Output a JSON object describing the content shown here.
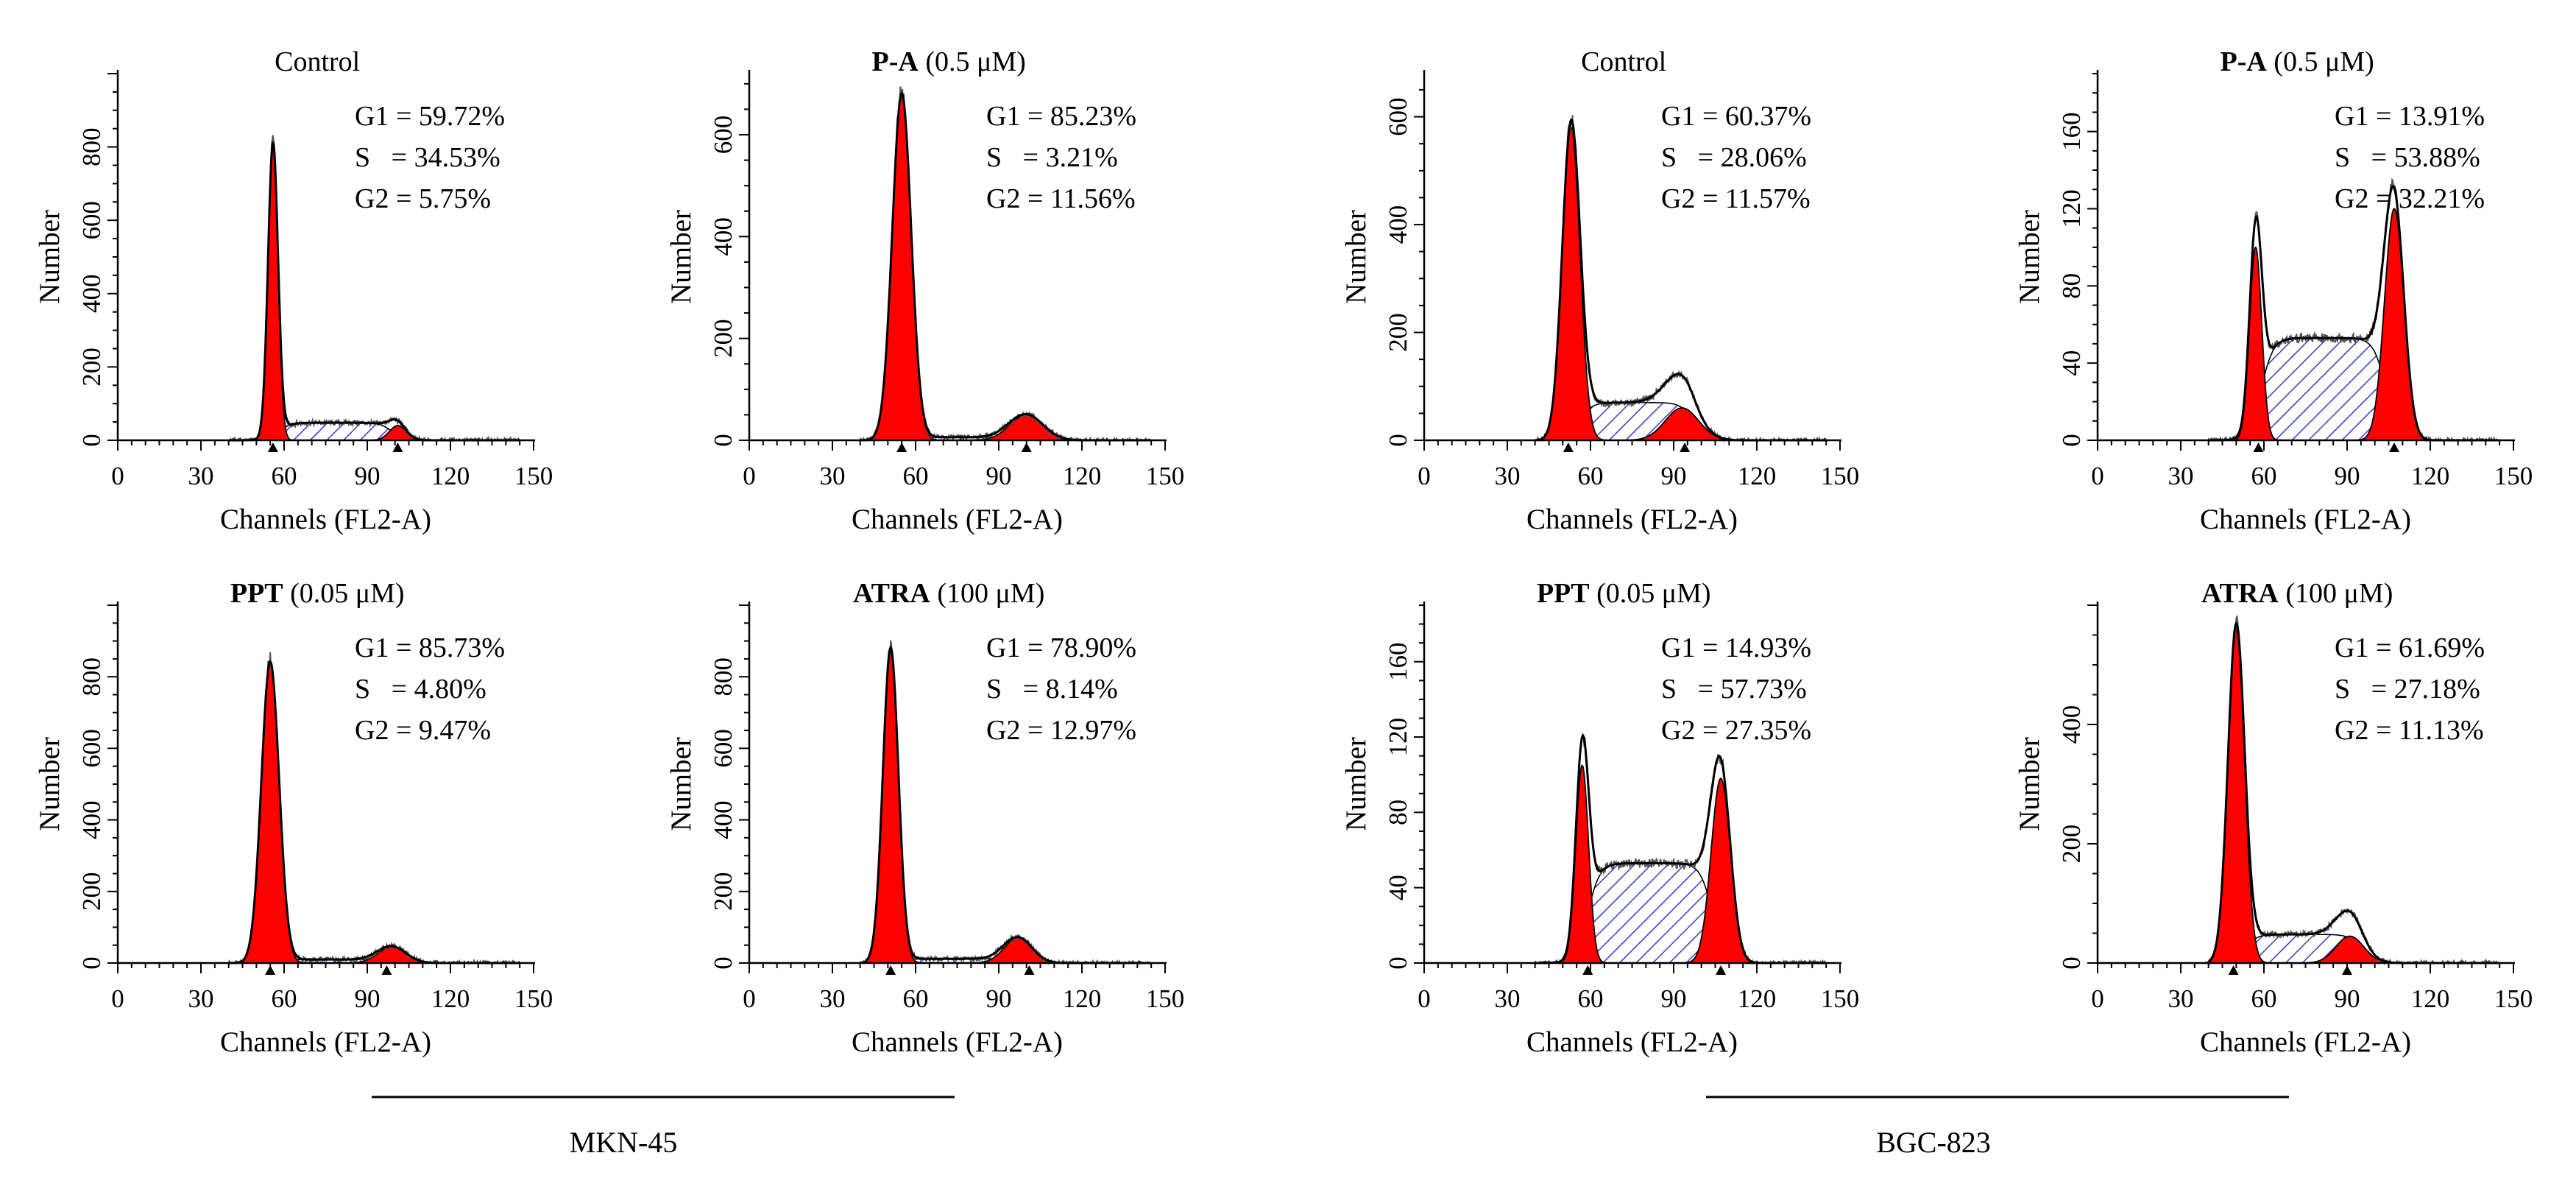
{
  "colors": {
    "g1_fill": "#ff0000",
    "g2_fill": "#ff0000",
    "s_hatch": "#3a3acc",
    "fit_line": "#000000",
    "raw_line": "#555555"
  },
  "groups": [
    {
      "label": "MKN-45",
      "panels": [
        0,
        1,
        4,
        5
      ]
    },
    {
      "label": "BGC-823",
      "panels": [
        2,
        3,
        6,
        7
      ]
    }
  ],
  "chart_data": [
    {
      "type": "histogram",
      "cell_line": "MKN-45",
      "title_bold": "",
      "title_normal": "Control",
      "xlabel": "Channels (FL2-A)",
      "ylabel": "Number",
      "xlim": [
        0,
        150
      ],
      "xticks": [
        "0",
        "30",
        "60",
        "90",
        "120",
        "150"
      ],
      "ylim": [
        0,
        1000
      ],
      "yticks": [
        "0",
        "200",
        "400",
        "600",
        "800"
      ],
      "stats": [
        "G1 = 59.72%",
        "S   = 34.53%",
        "G2 = 5.75%"
      ],
      "g1": {
        "peak": 800,
        "center": 56,
        "sigma": 1.8
      },
      "g2": {
        "peak": 40,
        "center": 101,
        "sigma": 3
      },
      "s_phase": {
        "start": 58,
        "end": 99,
        "height": 48
      },
      "g1_marker": 56,
      "g2_marker": 101
    },
    {
      "type": "histogram",
      "cell_line": "MKN-45",
      "title_bold": "P-A",
      "title_normal": " (0.5 μM)",
      "xlabel": "Channels (FL2-A)",
      "ylabel": "Number",
      "xlim": [
        0,
        150
      ],
      "xticks": [
        "0",
        "30",
        "60",
        "90",
        "120",
        "150"
      ],
      "ylim": [
        0,
        720
      ],
      "yticks": [
        "0",
        "200",
        "400",
        "600"
      ],
      "stats": [
        "G1 = 85.23%",
        "S   = 3.21%",
        "G2 = 11.56%"
      ],
      "g1": {
        "peak": 680,
        "center": 55,
        "sigma": 3.4
      },
      "g2": {
        "peak": 50,
        "center": 100,
        "sigma": 6
      },
      "s_phase": {
        "start": 58,
        "end": 97,
        "height": 6
      },
      "g1_marker": 55,
      "g2_marker": 100
    },
    {
      "type": "histogram",
      "cell_line": "BGC-823",
      "title_bold": "",
      "title_normal": "Control",
      "xlabel": "Channels (FL2-A)",
      "ylabel": "Number",
      "xlim": [
        0,
        150
      ],
      "xticks": [
        "0",
        "30",
        "60",
        "90",
        "120",
        "150"
      ],
      "ylim": [
        0,
        680
      ],
      "yticks": [
        "0",
        "200",
        "400",
        "600"
      ],
      "stats": [
        "G1 = 60.37%",
        "S   = 28.06%",
        "G2 = 11.57%"
      ],
      "g1": {
        "peak": 580,
        "center": 53,
        "sigma": 3.2
      },
      "g2": {
        "peak": 60,
        "center": 93,
        "sigma": 6
      },
      "s_phase": {
        "start": 56,
        "end": 97,
        "height": 70
      },
      "g1_marker": 52,
      "g2_marker": 94
    },
    {
      "type": "histogram",
      "cell_line": "BGC-823",
      "title_bold": "P-A",
      "title_normal": " (0.5 μM)",
      "xlabel": "Channels (FL2-A)",
      "ylabel": "Number",
      "xlim": [
        0,
        150
      ],
      "xticks": [
        "0",
        "30",
        "60",
        "90",
        "120",
        "150"
      ],
      "ylim": [
        0,
        190
      ],
      "yticks": [
        "0",
        "40",
        "80",
        "120",
        "160"
      ],
      "stats": [
        "G1 = 13.91%",
        "S   = 53.88%",
        "G2 = 32.21%"
      ],
      "g1": {
        "peak": 100,
        "center": 57,
        "sigma": 2.2
      },
      "g2": {
        "peak": 120,
        "center": 107,
        "sigma": 3.5
      },
      "s_phase": {
        "start": 59,
        "end": 104,
        "height": 53
      },
      "g1_marker": 58,
      "g2_marker": 107
    },
    {
      "type": "histogram",
      "cell_line": "MKN-45",
      "title_bold": "PPT",
      "title_normal": " (0.05 μM)",
      "xlabel": "Channels (FL2-A)",
      "ylabel": "Number",
      "xlim": [
        0,
        150
      ],
      "xticks": [
        "0",
        "30",
        "60",
        "90",
        "120",
        "150"
      ],
      "ylim": [
        0,
        1000
      ],
      "yticks": [
        "0",
        "200",
        "400",
        "600",
        "800"
      ],
      "stats": [
        "G1 = 85.73%",
        "S   = 4.80%",
        "G2 = 9.47%"
      ],
      "g1": {
        "peak": 840,
        "center": 55,
        "sigma": 3.2
      },
      "g2": {
        "peak": 45,
        "center": 99,
        "sigma": 5
      },
      "s_phase": {
        "start": 58,
        "end": 96,
        "height": 10
      },
      "g1_marker": 55,
      "g2_marker": 97
    },
    {
      "type": "histogram",
      "cell_line": "MKN-45",
      "title_bold": "ATRA",
      "title_normal": " (100 μM)",
      "xlabel": "Channels (FL2-A)",
      "ylabel": "Number",
      "xlim": [
        0,
        150
      ],
      "xticks": [
        "0",
        "30",
        "60",
        "90",
        "120",
        "150"
      ],
      "ylim": [
        0,
        1000
      ],
      "yticks": [
        "0",
        "200",
        "400",
        "600",
        "800"
      ],
      "stats": [
        "G1 = 78.90%",
        "S   = 8.14%",
        "G2 = 12.97%"
      ],
      "g1": {
        "peak": 880,
        "center": 51,
        "sigma": 2.8
      },
      "g2": {
        "peak": 70,
        "center": 97,
        "sigma": 5
      },
      "s_phase": {
        "start": 55,
        "end": 94,
        "height": 12
      },
      "g1_marker": 51,
      "g2_marker": 101
    },
    {
      "type": "histogram",
      "cell_line": "BGC-823",
      "title_bold": "PPT",
      "title_normal": " (0.05 μM)",
      "xlabel": "Channels (FL2-A)",
      "ylabel": "Number",
      "xlim": [
        0,
        150
      ],
      "xticks": [
        "0",
        "30",
        "60",
        "90",
        "120",
        "150"
      ],
      "ylim": [
        0,
        190
      ],
      "yticks": [
        "0",
        "40",
        "80",
        "120",
        "160"
      ],
      "stats": [
        "G1 = 14.93%",
        "S   = 57.73%",
        "G2 = 27.35%"
      ],
      "g1": {
        "peak": 105,
        "center": 57,
        "sigma": 2.3
      },
      "g2": {
        "peak": 98,
        "center": 107,
        "sigma": 3.5
      },
      "s_phase": {
        "start": 59,
        "end": 104,
        "height": 53
      },
      "g1_marker": 59,
      "g2_marker": 107
    },
    {
      "type": "histogram",
      "cell_line": "BGC-823",
      "title_bold": "ATRA",
      "title_normal": " (100 μM)",
      "xlabel": "Channels (FL2-A)",
      "ylabel": "Number",
      "xlim": [
        0,
        150
      ],
      "xticks": [
        "0",
        "30",
        "60",
        "90",
        "120",
        "150"
      ],
      "ylim": [
        0,
        600
      ],
      "yticks": [
        "0",
        "200",
        "400"
      ],
      "stats": [
        "G1 = 61.69%",
        "S   = 27.18%",
        "G2 = 11.13%"
      ],
      "g1": {
        "peak": 560,
        "center": 50,
        "sigma": 3.0
      },
      "g2": {
        "peak": 45,
        "center": 91,
        "sigma": 5
      },
      "s_phase": {
        "start": 53,
        "end": 95,
        "height": 48
      },
      "g1_marker": 49,
      "g2_marker": 90
    }
  ]
}
